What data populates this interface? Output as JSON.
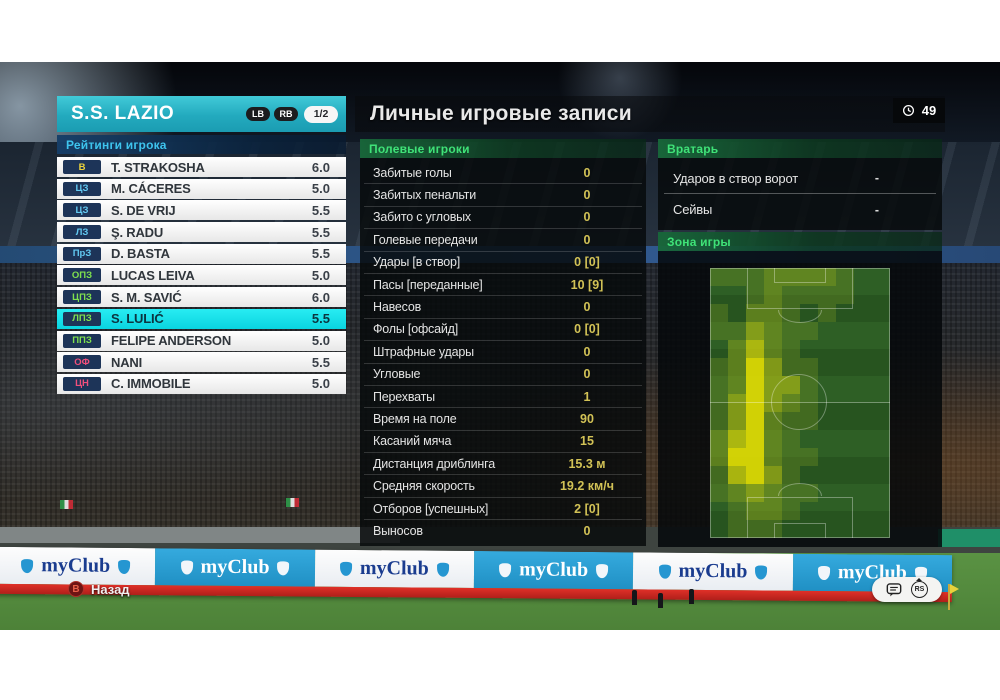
{
  "header": {
    "title": "Личные игровые записи",
    "clock_value": "49"
  },
  "team_panel": {
    "title": "S.S. LAZIO",
    "lb_label": "LB",
    "rb_label": "RB",
    "page_indicator": "1/2",
    "section_title": "Рейтинги игрока",
    "players": [
      {
        "pos": "В",
        "pos_type": "gk",
        "name": "T. STRAKOSHA",
        "rating": "6.0",
        "selected": false
      },
      {
        "pos": "ЦЗ",
        "pos_type": "df",
        "name": "M. CÁCERES",
        "rating": "5.0",
        "selected": false
      },
      {
        "pos": "ЦЗ",
        "pos_type": "df",
        "name": "S. DE VRIJ",
        "rating": "5.5",
        "selected": false
      },
      {
        "pos": "ЛЗ",
        "pos_type": "df",
        "name": "Ş. RADU",
        "rating": "5.5",
        "selected": false
      },
      {
        "pos": "ПрЗ",
        "pos_type": "df",
        "name": "D. BASTA",
        "rating": "5.5",
        "selected": false
      },
      {
        "pos": "ОПЗ",
        "pos_type": "mf",
        "name": "LUCAS LEIVA",
        "rating": "5.0",
        "selected": false
      },
      {
        "pos": "ЦПЗ",
        "pos_type": "mf",
        "name": "S. M. SAVIĆ",
        "rating": "6.0",
        "selected": false
      },
      {
        "pos": "ЛПЗ",
        "pos_type": "mf",
        "name": "S. LULIĆ",
        "rating": "5.5",
        "selected": true
      },
      {
        "pos": "ППЗ",
        "pos_type": "mf",
        "name": "FELIPE ANDERSON",
        "rating": "5.0",
        "selected": false
      },
      {
        "pos": "ОФ",
        "pos_type": "fw",
        "name": "NANI",
        "rating": "5.5",
        "selected": false
      },
      {
        "pos": "ЦН",
        "pos_type": "fw",
        "name": "C. IMMOBILE",
        "rating": "5.0",
        "selected": false
      }
    ]
  },
  "stats_panel": {
    "header": "Полевые игроки",
    "rows": [
      {
        "label": "Забитые голы",
        "value": "0"
      },
      {
        "label": "Забитых пенальти",
        "value": "0"
      },
      {
        "label": "Забито с угловых",
        "value": "0"
      },
      {
        "label": "Голевые передачи",
        "value": "0"
      },
      {
        "label": "Удары [в створ]",
        "value": "0 [0]"
      },
      {
        "label": "Пасы [переданные]",
        "value": "10 [9]"
      },
      {
        "label": "Навесов",
        "value": "0"
      },
      {
        "label": "Фолы [офсайд]",
        "value": "0 [0]"
      },
      {
        "label": "Штрафные удары",
        "value": "0"
      },
      {
        "label": "Угловые",
        "value": "0"
      },
      {
        "label": "Перехваты",
        "value": "1"
      },
      {
        "label": "Время на поле",
        "value": "90"
      },
      {
        "label": "Касаний мяча",
        "value": "15"
      },
      {
        "label": "Дистанция дриблинга",
        "value": "15.3 м"
      },
      {
        "label": "Средняя скорость",
        "value": "19.2 км/ч"
      },
      {
        "label": "Отборов [успешных]",
        "value": "2 [0]"
      },
      {
        "label": "Выносов",
        "value": "0"
      }
    ]
  },
  "gk_panel": {
    "header": "Вратарь",
    "rows": [
      {
        "label": "Ударов в створ ворот",
        "value": "-"
      },
      {
        "label": "Сейвы",
        "value": "-"
      }
    ]
  },
  "zone_panel": {
    "header": "Зона игры"
  },
  "footer": {
    "back_button_glyph": "B",
    "back_label": "Назад",
    "right_stick_label": "RS"
  },
  "adboard": {
    "brand": "myClub",
    "segments": [
      "white",
      "blue",
      "white",
      "blue",
      "white",
      "blue"
    ]
  },
  "colors": {
    "team_header_teal": "#23aabe",
    "selected_row_cyan": "#0ad4e0",
    "section_green": "#3fe278",
    "ratings_cyan": "#3ec4ee",
    "stat_value_gold": "#d2c256",
    "pos_gk": "#ecd33c",
    "pos_df": "#62c9f2",
    "pos_mf": "#7fe14e",
    "pos_fw": "#f04f7c"
  },
  "chart_data": {
    "type": "heatmap",
    "title": "Зона игры",
    "description": "Player activity zone map on a vertical football pitch; activity concentrated on the left flank (left midfielder S. Lulić). Intensity 0 = base pitch, 5 = brightest yellow.",
    "cols": 10,
    "rows": 15,
    "palette": [
      "rgba(128,158,36,0.30)",
      "rgba(158,180,28,0.45)",
      "rgba(188,198,20,0.60)",
      "rgba(214,214,10,0.74)",
      "rgba(233,226,2,0.88)"
    ],
    "values": [
      [
        1,
        1,
        1,
        2,
        2,
        2,
        2,
        1,
        0,
        0
      ],
      [
        0,
        0,
        1,
        2,
        1,
        1,
        1,
        1,
        0,
        0
      ],
      [
        1,
        0,
        2,
        2,
        1,
        0,
        1,
        0,
        0,
        0
      ],
      [
        1,
        1,
        3,
        2,
        1,
        1,
        0,
        0,
        0,
        0
      ],
      [
        0,
        2,
        4,
        2,
        1,
        0,
        0,
        0,
        0,
        0
      ],
      [
        1,
        2,
        5,
        3,
        1,
        1,
        0,
        0,
        0,
        0
      ],
      [
        1,
        2,
        5,
        3,
        3,
        1,
        0,
        0,
        0,
        0
      ],
      [
        1,
        3,
        5,
        3,
        2,
        1,
        0,
        0,
        0,
        0
      ],
      [
        1,
        3,
        5,
        2,
        1,
        1,
        0,
        0,
        0,
        0
      ],
      [
        2,
        4,
        5,
        2,
        1,
        0,
        0,
        0,
        0,
        0
      ],
      [
        2,
        5,
        5,
        2,
        1,
        1,
        0,
        0,
        0,
        0
      ],
      [
        1,
        4,
        5,
        3,
        1,
        0,
        0,
        0,
        0,
        0
      ],
      [
        1,
        2,
        3,
        2,
        1,
        1,
        0,
        0,
        0,
        0
      ],
      [
        0,
        1,
        2,
        2,
        1,
        0,
        0,
        0,
        0,
        0
      ],
      [
        0,
        1,
        1,
        1,
        0,
        0,
        0,
        0,
        0,
        0
      ]
    ]
  }
}
